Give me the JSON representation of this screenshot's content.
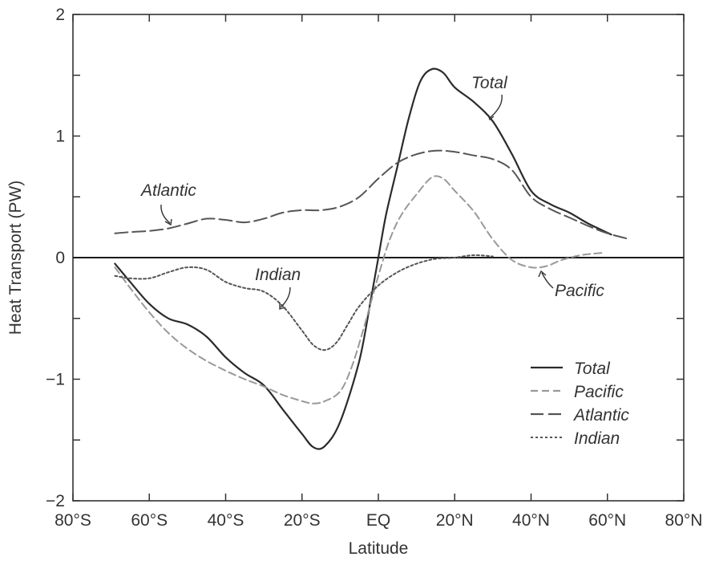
{
  "chart_data": {
    "type": "line",
    "title": "",
    "xlabel": "Latitude",
    "ylabel": "Heat Transport (PW)",
    "xlim": [
      -80,
      80
    ],
    "ylim": [
      -2,
      2
    ],
    "x_ticks": [
      {
        "value": -80,
        "label": "80°S"
      },
      {
        "value": -60,
        "label": "60°S"
      },
      {
        "value": -40,
        "label": "40°S"
      },
      {
        "value": -20,
        "label": "20°S"
      },
      {
        "value": 0,
        "label": "EQ"
      },
      {
        "value": 20,
        "label": "20°N"
      },
      {
        "value": 40,
        "label": "40°N"
      },
      {
        "value": 60,
        "label": "60°N"
      },
      {
        "value": 80,
        "label": "80°N"
      }
    ],
    "y_ticks": [
      {
        "value": -2,
        "label": "−2"
      },
      {
        "value": -1,
        "label": "−1"
      },
      {
        "value": 0,
        "label": "0"
      },
      {
        "value": 1,
        "label": "1"
      },
      {
        "value": 2,
        "label": "2"
      }
    ],
    "grid": false,
    "legend_position": "bottom-right",
    "series": [
      {
        "name": "Total",
        "style": "solid",
        "color": "#2b2b2b",
        "points": [
          [
            -69,
            -0.05
          ],
          [
            -65,
            -0.2
          ],
          [
            -60,
            -0.38
          ],
          [
            -55,
            -0.5
          ],
          [
            -50,
            -0.55
          ],
          [
            -45,
            -0.65
          ],
          [
            -40,
            -0.82
          ],
          [
            -35,
            -0.95
          ],
          [
            -30,
            -1.05
          ],
          [
            -25,
            -1.25
          ],
          [
            -20,
            -1.45
          ],
          [
            -17,
            -1.56
          ],
          [
            -14,
            -1.55
          ],
          [
            -10,
            -1.35
          ],
          [
            -5,
            -0.85
          ],
          [
            -2,
            -0.35
          ],
          [
            0,
            0
          ],
          [
            2,
            0.35
          ],
          [
            5,
            0.75
          ],
          [
            8,
            1.15
          ],
          [
            11,
            1.45
          ],
          [
            14,
            1.55
          ],
          [
            17,
            1.52
          ],
          [
            20,
            1.4
          ],
          [
            25,
            1.28
          ],
          [
            30,
            1.12
          ],
          [
            35,
            0.85
          ],
          [
            40,
            0.55
          ],
          [
            45,
            0.44
          ],
          [
            50,
            0.37
          ],
          [
            55,
            0.28
          ],
          [
            61,
            0.19
          ]
        ]
      },
      {
        "name": "Pacific",
        "style": "short-dash",
        "color": "#999999",
        "points": [
          [
            -69,
            -0.08
          ],
          [
            -65,
            -0.25
          ],
          [
            -60,
            -0.45
          ],
          [
            -55,
            -0.62
          ],
          [
            -50,
            -0.75
          ],
          [
            -45,
            -0.85
          ],
          [
            -40,
            -0.93
          ],
          [
            -35,
            -1.0
          ],
          [
            -30,
            -1.06
          ],
          [
            -25,
            -1.13
          ],
          [
            -20,
            -1.18
          ],
          [
            -17,
            -1.2
          ],
          [
            -14,
            -1.18
          ],
          [
            -10,
            -1.1
          ],
          [
            -7,
            -0.9
          ],
          [
            -4,
            -0.6
          ],
          [
            0,
            -0.15
          ],
          [
            3,
            0.15
          ],
          [
            6,
            0.35
          ],
          [
            10,
            0.52
          ],
          [
            14,
            0.66
          ],
          [
            17,
            0.65
          ],
          [
            20,
            0.55
          ],
          [
            25,
            0.38
          ],
          [
            30,
            0.15
          ],
          [
            35,
            -0.02
          ],
          [
            40,
            -0.08
          ],
          [
            44,
            -0.07
          ],
          [
            48,
            -0.02
          ],
          [
            53,
            0.02
          ],
          [
            59,
            0.04
          ]
        ]
      },
      {
        "name": "Atlantic",
        "style": "long-dash",
        "color": "#555555",
        "points": [
          [
            -69,
            0.2
          ],
          [
            -65,
            0.21
          ],
          [
            -60,
            0.22
          ],
          [
            -55,
            0.24
          ],
          [
            -50,
            0.28
          ],
          [
            -45,
            0.32
          ],
          [
            -40,
            0.31
          ],
          [
            -35,
            0.29
          ],
          [
            -30,
            0.32
          ],
          [
            -25,
            0.37
          ],
          [
            -20,
            0.39
          ],
          [
            -15,
            0.39
          ],
          [
            -10,
            0.42
          ],
          [
            -5,
            0.5
          ],
          [
            0,
            0.65
          ],
          [
            5,
            0.78
          ],
          [
            10,
            0.85
          ],
          [
            15,
            0.88
          ],
          [
            20,
            0.87
          ],
          [
            25,
            0.84
          ],
          [
            30,
            0.81
          ],
          [
            35,
            0.72
          ],
          [
            40,
            0.5
          ],
          [
            45,
            0.4
          ],
          [
            50,
            0.33
          ],
          [
            55,
            0.26
          ],
          [
            60,
            0.2
          ],
          [
            66,
            0.15
          ]
        ]
      },
      {
        "name": "Indian",
        "style": "dotted",
        "color": "#555555",
        "points": [
          [
            -69,
            -0.15
          ],
          [
            -65,
            -0.17
          ],
          [
            -60,
            -0.17
          ],
          [
            -55,
            -0.12
          ],
          [
            -50,
            -0.08
          ],
          [
            -45,
            -0.1
          ],
          [
            -40,
            -0.2
          ],
          [
            -35,
            -0.25
          ],
          [
            -30,
            -0.28
          ],
          [
            -25,
            -0.4
          ],
          [
            -20,
            -0.6
          ],
          [
            -17,
            -0.72
          ],
          [
            -14,
            -0.76
          ],
          [
            -11,
            -0.7
          ],
          [
            -8,
            -0.55
          ],
          [
            -5,
            -0.4
          ],
          [
            0,
            -0.23
          ],
          [
            5,
            -0.12
          ],
          [
            10,
            -0.05
          ],
          [
            15,
            -0.01
          ],
          [
            20,
            0.0
          ],
          [
            25,
            0.02
          ],
          [
            30,
            0.01
          ]
        ]
      }
    ],
    "annotations": [
      {
        "text": "Total",
        "series": "Total"
      },
      {
        "text": "Atlantic",
        "series": "Atlantic"
      },
      {
        "text": "Indian",
        "series": "Indian"
      },
      {
        "text": "Pacific",
        "series": "Pacific"
      }
    ]
  }
}
